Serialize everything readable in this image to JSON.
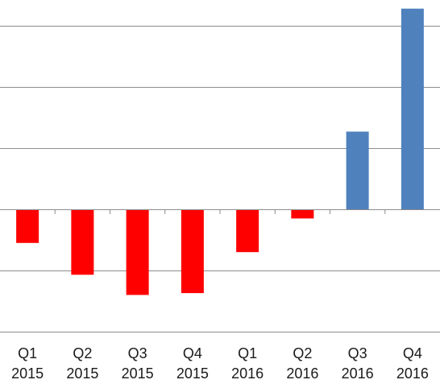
{
  "chart_data": {
    "type": "bar",
    "categories": [
      [
        "Q1",
        "2015"
      ],
      [
        "Q2",
        "2015"
      ],
      [
        "Q3",
        "2015"
      ],
      [
        "Q4",
        "2015"
      ],
      [
        "Q1",
        "2016"
      ],
      [
        "Q2",
        "2016"
      ],
      [
        "Q3",
        "2016"
      ],
      [
        "Q4",
        "2016"
      ]
    ],
    "values": [
      -0.55,
      -1.07,
      -1.4,
      -1.37,
      -0.7,
      -0.15,
      1.27,
      3.28
    ],
    "ylim": [
      -2.0,
      3.4
    ],
    "gridlines": [
      -2,
      -1,
      0,
      1,
      2,
      3
    ],
    "grid": true,
    "legend": "none",
    "colors": {
      "positive": "#4F81BD",
      "negative": "#FF0000",
      "gridline": "#8C8C8C",
      "axis": "#8C8C8C"
    }
  }
}
